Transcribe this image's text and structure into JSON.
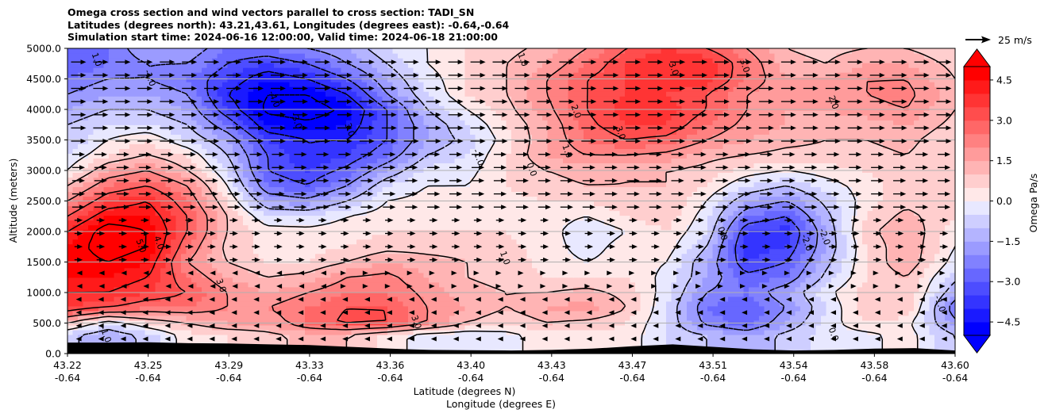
{
  "chart_data": {
    "type": "heatmap",
    "title_lines": [
      "Omega cross section and wind vectors parallel to cross section: TADI_SN",
      "Latitudes (degrees north): 43.21,43.61, Longitudes (degrees east): -0.64,-0.64",
      "Simulation start time: 2024-06-16 12:00:00, Valid time: 2024-06-18 21:00:00"
    ],
    "ylabel": "Altitude (meters)",
    "xlabel_lines": [
      "Latitude (degrees N)",
      "Longitude (degrees E)"
    ],
    "x_ticks": [
      {
        "lat": "43.22",
        "lon": "-0.64"
      },
      {
        "lat": "43.25",
        "lon": "-0.64"
      },
      {
        "lat": "43.29",
        "lon": "-0.64"
      },
      {
        "lat": "43.33",
        "lon": "-0.64"
      },
      {
        "lat": "43.36",
        "lon": "-0.64"
      },
      {
        "lat": "43.40",
        "lon": "-0.64"
      },
      {
        "lat": "43.43",
        "lon": "-0.64"
      },
      {
        "lat": "43.47",
        "lon": "-0.64"
      },
      {
        "lat": "43.51",
        "lon": "-0.64"
      },
      {
        "lat": "43.54",
        "lon": "-0.64"
      },
      {
        "lat": "43.58",
        "lon": "-0.64"
      },
      {
        "lat": "43.60",
        "lon": "-0.64"
      }
    ],
    "y_ticks": [
      "0.0",
      "500.0",
      "1000.0",
      "1500.0",
      "2000.0",
      "2500.0",
      "3000.0",
      "3500.0",
      "4000.0",
      "4500.0",
      "5000.0"
    ],
    "ylim": [
      0,
      5000
    ],
    "grid": "horizontal",
    "colorbar": {
      "label": "Omega Pa/s",
      "range": [
        -5,
        5
      ],
      "ticks": [
        "-4.5",
        "-3.0",
        "-1.5",
        "0.0",
        "1.5",
        "3.0",
        "4.5"
      ],
      "extend": "both",
      "low_color": "#0000ff",
      "high_color": "#ff0000"
    },
    "quiver_key": "25 m/s",
    "omega_field": {
      "x_fraction": [
        0,
        0.045,
        0.09,
        0.135,
        0.18,
        0.225,
        0.27,
        0.315,
        0.36,
        0.405,
        0.45,
        0.495,
        0.54,
        0.585,
        0.63,
        0.675,
        0.72,
        0.765,
        0.81,
        0.855,
        0.9,
        0.945,
        1.0
      ],
      "altitude": [
        300,
        500,
        750,
        1000,
        1250,
        1500,
        1750,
        2000,
        2250,
        2500,
        2750,
        3000,
        3250,
        3500,
        3750,
        4000,
        4250,
        4500,
        4750,
        5000
      ],
      "values": [
        [
          -0.8,
          -1.5,
          -0.8,
          0.3,
          0.5,
          0.8,
          1.2,
          1.0,
          0.3,
          -0.3,
          -0.5,
          -0.2,
          0.3,
          0.3,
          0.3,
          -0.5,
          -1.0,
          -1.5,
          -0.8,
          -0.3,
          -0.2,
          0.3,
          -1.0
        ],
        [
          1.0,
          -0.5,
          0.5,
          1.0,
          1.5,
          1.5,
          2.5,
          3.2,
          3.0,
          2.0,
          1.0,
          0.5,
          1.0,
          0.8,
          0.5,
          -0.5,
          -2.2,
          -2.8,
          -1.5,
          -0.3,
          0.5,
          0.2,
          -1.8
        ],
        [
          3.5,
          3.0,
          2.5,
          2.5,
          2.0,
          2.0,
          2.5,
          3.0,
          3.0,
          2.0,
          1.5,
          1.0,
          1.5,
          1.8,
          1.0,
          -0.5,
          -2.5,
          -3.0,
          -2.0,
          -0.5,
          0.8,
          1.0,
          -2.5
        ],
        [
          4.0,
          4.0,
          3.5,
          3.0,
          2.0,
          1.5,
          2.0,
          2.5,
          2.5,
          1.8,
          1.2,
          1.0,
          1.0,
          1.2,
          0.8,
          -0.3,
          -2.0,
          -2.5,
          -1.5,
          -0.2,
          0.8,
          1.0,
          -1.5
        ],
        [
          4.5,
          4.5,
          4.0,
          2.5,
          1.5,
          1.0,
          1.2,
          2.0,
          2.2,
          1.5,
          1.0,
          0.8,
          0.5,
          0.5,
          0.5,
          -0.2,
          -1.5,
          -2.8,
          -2.5,
          -0.8,
          0.5,
          1.0,
          -0.8
        ],
        [
          4.5,
          5.0,
          4.5,
          2.0,
          1.0,
          0.5,
          0.5,
          1.0,
          1.5,
          1.2,
          1.0,
          0.8,
          0.3,
          0.0,
          0.3,
          0.0,
          -1.5,
          -3.5,
          -3.0,
          -1.2,
          0.5,
          1.5,
          -0.3
        ],
        [
          4.5,
          5.5,
          5.0,
          2.5,
          0.8,
          0.3,
          0.3,
          0.5,
          0.8,
          0.8,
          0.8,
          0.6,
          0.3,
          -0.3,
          0.3,
          0.3,
          -1.0,
          -3.8,
          -3.5,
          -1.5,
          0.5,
          1.5,
          0.0
        ],
        [
          4.0,
          5.5,
          5.0,
          3.0,
          1.0,
          0.3,
          0.2,
          0.3,
          0.5,
          0.5,
          0.5,
          0.5,
          0.3,
          -0.5,
          0.0,
          0.5,
          -0.5,
          -3.5,
          -3.8,
          -1.5,
          0.8,
          1.5,
          0.2
        ],
        [
          3.0,
          4.5,
          4.5,
          3.0,
          1.0,
          -0.5,
          -0.5,
          0.0,
          0.3,
          0.3,
          0.3,
          0.3,
          0.3,
          0.0,
          0.5,
          0.8,
          -0.3,
          -2.5,
          -3.0,
          -1.2,
          0.5,
          1.2,
          0.5
        ],
        [
          2.0,
          3.5,
          4.0,
          2.5,
          0.5,
          -1.5,
          -1.8,
          -1.0,
          0.0,
          0.2,
          0.2,
          0.3,
          0.5,
          0.5,
          0.8,
          1.0,
          0.0,
          -1.5,
          -2.0,
          -0.8,
          0.3,
          0.8,
          0.5
        ],
        [
          1.0,
          2.5,
          3.0,
          2.0,
          0.0,
          -2.5,
          -3.0,
          -2.0,
          -0.5,
          0.0,
          0.0,
          0.5,
          0.8,
          1.0,
          1.0,
          1.0,
          0.5,
          -0.5,
          -1.0,
          -0.3,
          0.3,
          0.8,
          0.5
        ],
        [
          0.0,
          1.5,
          2.0,
          1.0,
          -0.5,
          -3.0,
          -3.5,
          -2.8,
          -1.5,
          -0.3,
          -0.2,
          0.5,
          1.0,
          1.2,
          1.0,
          1.0,
          0.8,
          0.3,
          0.0,
          0.3,
          0.5,
          0.8,
          0.5
        ],
        [
          -0.5,
          0.5,
          1.0,
          0.5,
          -1.0,
          -3.0,
          -4.0,
          -3.5,
          -2.5,
          -1.0,
          -0.5,
          0.5,
          1.5,
          2.0,
          2.0,
          1.8,
          1.2,
          1.0,
          0.8,
          0.8,
          0.8,
          1.0,
          0.5
        ],
        [
          -1.0,
          0.0,
          0.5,
          -0.5,
          -1.5,
          -3.5,
          -4.0,
          -4.0,
          -3.0,
          -1.5,
          -0.8,
          0.3,
          1.5,
          2.5,
          3.0,
          2.8,
          2.0,
          1.5,
          1.2,
          1.0,
          1.0,
          1.2,
          0.5
        ],
        [
          -1.0,
          -0.5,
          -0.5,
          -1.0,
          -2.5,
          -4.5,
          -4.8,
          -4.5,
          -3.0,
          -1.5,
          -0.5,
          0.5,
          1.5,
          2.8,
          3.5,
          3.5,
          2.5,
          1.8,
          1.5,
          1.2,
          1.2,
          1.5,
          0.8
        ],
        [
          -1.5,
          -1.0,
          -1.0,
          -1.5,
          -3.5,
          -5.2,
          -5.5,
          -4.8,
          -3.0,
          -1.0,
          0.0,
          0.8,
          1.8,
          3.0,
          3.8,
          3.8,
          3.0,
          2.0,
          1.5,
          1.5,
          1.8,
          2.0,
          1.0
        ],
        [
          -2.0,
          -1.5,
          -1.5,
          -2.0,
          -4.0,
          -5.0,
          -5.0,
          -4.0,
          -2.0,
          -0.5,
          0.5,
          1.0,
          2.0,
          3.0,
          3.5,
          3.5,
          3.0,
          2.0,
          1.5,
          1.8,
          2.0,
          2.2,
          1.2
        ],
        [
          -2.5,
          -2.0,
          -2.0,
          -2.5,
          -3.5,
          -4.5,
          -4.0,
          -3.0,
          -1.5,
          -0.3,
          0.5,
          1.0,
          2.0,
          3.0,
          3.5,
          3.8,
          3.8,
          2.5,
          1.5,
          1.5,
          2.0,
          2.0,
          1.0
        ],
        [
          -3.0,
          -2.5,
          -2.0,
          -2.0,
          -3.0,
          -3.5,
          -3.0,
          -2.0,
          -1.0,
          0.0,
          0.5,
          1.0,
          1.5,
          2.5,
          3.5,
          4.0,
          4.0,
          2.5,
          1.2,
          1.0,
          1.5,
          1.5,
          0.8
        ],
        [
          -3.0,
          -2.5,
          -1.5,
          -1.5,
          -2.5,
          -2.5,
          -2.0,
          -1.5,
          -0.5,
          0.0,
          0.5,
          0.8,
          1.2,
          2.0,
          3.0,
          3.5,
          3.0,
          2.0,
          1.0,
          0.8,
          1.0,
          1.0,
          0.5
        ]
      ]
    },
    "contour_labels": [
      "1.0",
      "-1.0",
      "-4.0",
      "-3.0",
      "3.0",
      "5.0",
      "4.0",
      "-2.0",
      "-1.0",
      "0.0",
      "2.0",
      "1.0"
    ],
    "terrain_height_m": [
      180,
      180,
      185,
      170,
      165,
      150,
      140,
      110,
      80,
      60,
      55,
      50,
      60,
      80,
      120,
      150,
      110,
      70,
      50,
      60,
      80,
      90,
      50
    ]
  }
}
